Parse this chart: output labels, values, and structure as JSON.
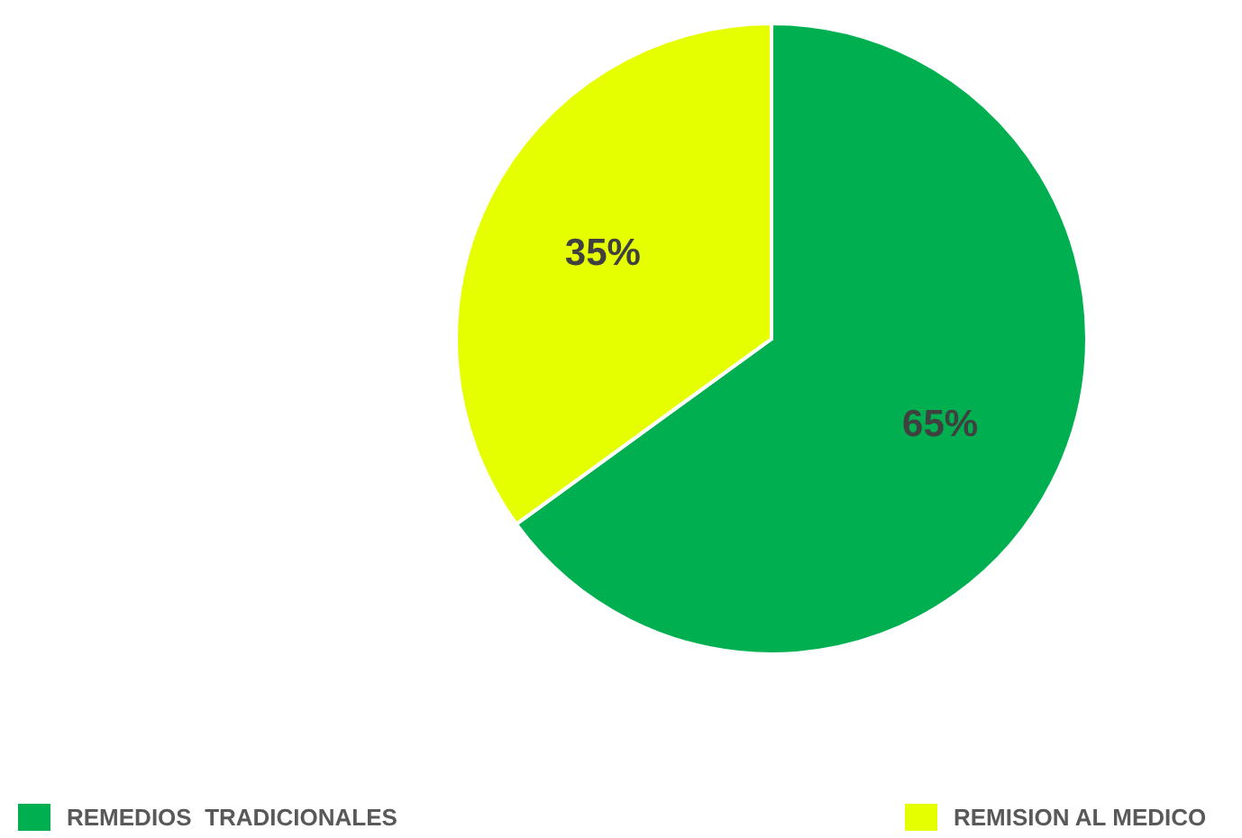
{
  "chart_data": {
    "type": "pie",
    "categories": [
      "REMEDIOS  TRADICIONALES",
      "REMISION AL MEDICO"
    ],
    "values": [
      65,
      35
    ],
    "colors": [
      "#00b050",
      "#e6ff00"
    ],
    "value_labels": [
      "65%",
      "35%"
    ],
    "legend": "bottom"
  }
}
